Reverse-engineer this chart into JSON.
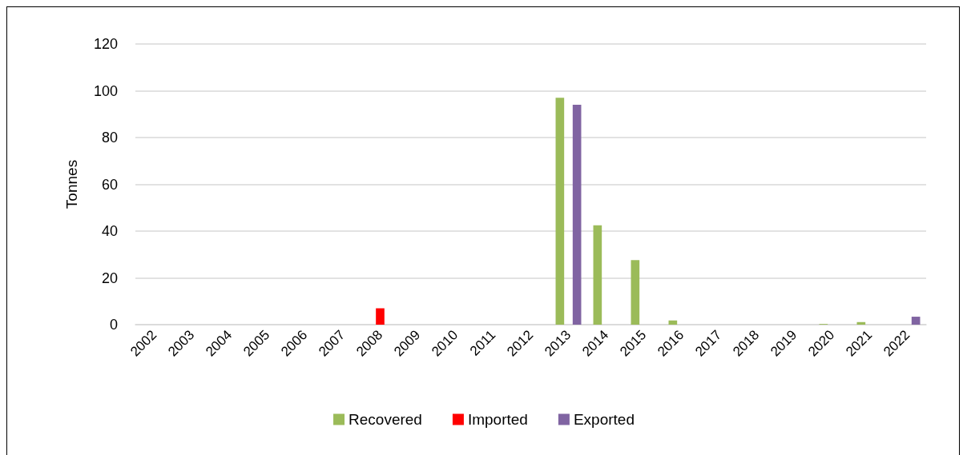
{
  "chart_data": {
    "type": "bar",
    "ylabel": "Tonnes",
    "categories": [
      "2002",
      "2003",
      "2004",
      "2005",
      "2006",
      "2007",
      "2008",
      "2009",
      "2010",
      "2011",
      "2012",
      "2013",
      "2014",
      "2015",
      "2016",
      "2017",
      "2018",
      "2019",
      "2020",
      "2021",
      "2022"
    ],
    "series": [
      {
        "name": "Recovered",
        "color": "#9bbb59",
        "values": [
          null,
          null,
          null,
          null,
          null,
          null,
          null,
          null,
          null,
          null,
          null,
          97,
          42.5,
          27.6,
          1.8,
          null,
          null,
          null,
          0.3,
          1.1,
          null
        ]
      },
      {
        "name": "Imported",
        "color": "#ff0000",
        "values": [
          null,
          null,
          null,
          null,
          null,
          null,
          7,
          null,
          null,
          null,
          null,
          null,
          null,
          null,
          null,
          null,
          null,
          null,
          null,
          null,
          null
        ]
      },
      {
        "name": "Exported",
        "color": "#8064a2",
        "values": [
          null,
          null,
          null,
          null,
          null,
          null,
          null,
          null,
          null,
          null,
          null,
          94,
          null,
          null,
          null,
          null,
          null,
          null,
          null,
          null,
          3.4
        ]
      }
    ],
    "ylim": [
      0,
      120
    ],
    "yticks": [
      0,
      20,
      40,
      60,
      80,
      100,
      120
    ],
    "grid": "y",
    "legend": "bottom"
  }
}
